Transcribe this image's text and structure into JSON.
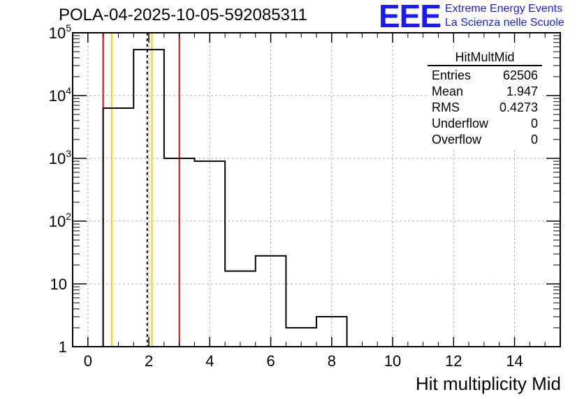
{
  "title": "POLA-04-2025-10-05-592085311",
  "logo": {
    "text": "EEE",
    "line1": "Extreme Energy Events",
    "line2": "La Scienza nelle Scuole"
  },
  "stats": {
    "name": "HitMultMid",
    "rows": [
      {
        "label": "Entries",
        "value": "62506"
      },
      {
        "label": "Mean",
        "value": "1.947"
      },
      {
        "label": "RMS",
        "value": "0.4273"
      },
      {
        "label": "Underflow",
        "value": "0"
      },
      {
        "label": "Overflow",
        "value": "0"
      }
    ]
  },
  "chart_data": {
    "type": "histogram",
    "title": "POLA-04-2025-10-05-592085311",
    "xlabel": "Hit multiplicity Mid",
    "ylabel": "",
    "xlim": [
      -0.5,
      15.5
    ],
    "ylim": [
      1,
      100000
    ],
    "yscale": "log",
    "grid": true,
    "x_ticks": [
      "0",
      "2",
      "4",
      "6",
      "8",
      "10",
      "12",
      "14"
    ],
    "y_ticks": [
      {
        "base": "1",
        "exp": ""
      },
      {
        "base": "10",
        "exp": ""
      },
      {
        "base": "10",
        "exp": "2"
      },
      {
        "base": "10",
        "exp": "3"
      },
      {
        "base": "10",
        "exp": "4"
      },
      {
        "base": "10",
        "exp": "5"
      }
    ],
    "bins": [
      {
        "low": 0.5,
        "high": 1.5,
        "count": 6300
      },
      {
        "low": 1.5,
        "high": 2.5,
        "count": 54000
      },
      {
        "low": 2.5,
        "high": 3.5,
        "count": 1000
      },
      {
        "low": 3.5,
        "high": 4.5,
        "count": 900
      },
      {
        "low": 4.5,
        "high": 5.5,
        "count": 16
      },
      {
        "low": 5.5,
        "high": 6.5,
        "count": 28
      },
      {
        "low": 6.5,
        "high": 7.5,
        "count": 2
      },
      {
        "low": 7.5,
        "high": 8.5,
        "count": 3
      }
    ],
    "markers": [
      {
        "x": 0.5,
        "color": "#e00000",
        "style": "solid"
      },
      {
        "x": 0.78,
        "color": "#ffcc00",
        "style": "solid"
      },
      {
        "x": 1.947,
        "color": "#000000",
        "style": "dashed"
      },
      {
        "x": 2.1,
        "color": "#ffcc00",
        "style": "solid"
      },
      {
        "x": 3.0,
        "color": "#e00000",
        "style": "solid"
      }
    ]
  }
}
